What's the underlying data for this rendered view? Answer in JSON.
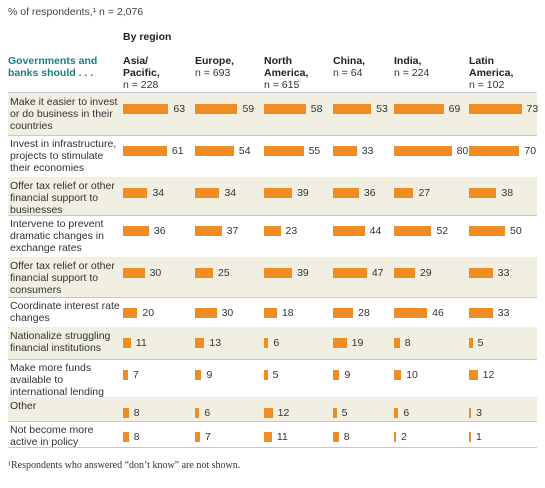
{
  "note": "% of respondents,¹ n = 2,076",
  "footnote": "¹Respondents who answered “don’t know” are not shown.",
  "colors": {
    "bar": "#f08c24",
    "shade": "#f0efe2",
    "question": "#1a7f86"
  },
  "chart_data": {
    "type": "bar",
    "title": "By region",
    "question": "Governments and banks should . . .",
    "categories": [
      "Make it easier to invest or do business in their countries",
      "Invest in infrastructure, projects to stimulate their economies",
      "Offer tax relief or other financial support to businesses",
      "Intervene to prevent dramatic changes in exchange rates",
      "Offer tax relief or other financial support to consumers",
      "Coordinate interest rate changes",
      "Nationalize struggling financial institutions",
      "Make more funds available to international lending institutions",
      "Other",
      "Not become more active in policy"
    ],
    "series": [
      {
        "name": "Asia/ Pacific,",
        "n": "n = 228",
        "values": [
          63,
          61,
          34,
          36,
          30,
          20,
          11,
          7,
          8,
          8
        ]
      },
      {
        "name": "Europe,",
        "n": "n = 693",
        "values": [
          59,
          54,
          34,
          37,
          25,
          30,
          13,
          9,
          6,
          7
        ]
      },
      {
        "name": "North America,",
        "n": "n = 615",
        "values": [
          58,
          55,
          39,
          23,
          39,
          18,
          6,
          5,
          12,
          11
        ]
      },
      {
        "name": "China,",
        "n": "n = 64",
        "values": [
          53,
          33,
          36,
          44,
          47,
          28,
          19,
          9,
          5,
          8
        ]
      },
      {
        "name": "India,",
        "n": "n = 224",
        "values": [
          69,
          80,
          27,
          52,
          29,
          46,
          8,
          10,
          6,
          2
        ]
      },
      {
        "name": "Latin America,",
        "n": "n = 102",
        "values": [
          73,
          70,
          38,
          50,
          33,
          33,
          5,
          12,
          3,
          1
        ]
      }
    ]
  }
}
